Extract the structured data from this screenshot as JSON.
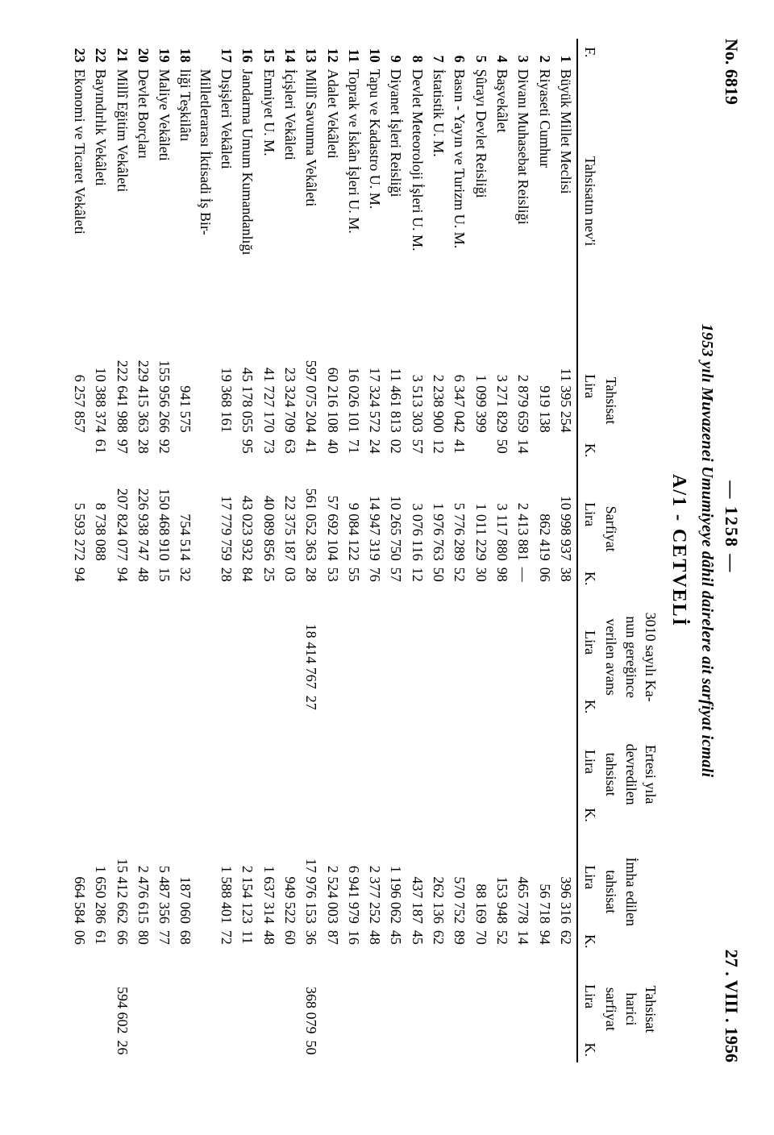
{
  "header": {
    "left": "No. 6819",
    "center": "— 1258 —",
    "right": "27 . VIII . 1956"
  },
  "subtitle": "1953 yılı Muvazenei Umumiyeye dâhil dairelere ait sarfiyat icmali",
  "section": "A/1 - CETVELİ",
  "columns": {
    "f": "F.",
    "name": "Tahsisatın nev'i",
    "tahsisat": "Tahsisat",
    "sarfiyat": "Sarfiyat",
    "avans": "3010 sayılı Ka-\nnun gereğince\nverilen avans",
    "devir": "Ertesi yıla\ndevredilen\ntahsisat",
    "imha": "İmha edilen\ntahsisat",
    "harici": "Tahsisat\nharici\nsarfiyat",
    "lira": "Lira",
    "k": "K."
  },
  "rows": [
    {
      "f": "1",
      "name": "Büyük Millet Meclisi",
      "tahsisat_l": "11 395 254",
      "tahsisat_k": "",
      "sarfiyat_l": "10 998 937",
      "sarfiyat_k": "38",
      "avans_l": "",
      "avans_k": "",
      "devir_l": "",
      "devir_k": "",
      "imha_l": "396 316",
      "imha_k": "62",
      "harici_l": "",
      "harici_k": ""
    },
    {
      "f": "2",
      "name": "Riyaseti Cumhur",
      "tahsisat_l": "919 138",
      "tahsisat_k": "",
      "sarfiyat_l": "862 419",
      "sarfiyat_k": "06",
      "avans_l": "",
      "avans_k": "",
      "devir_l": "",
      "devir_k": "",
      "imha_l": "56 718",
      "imha_k": "94",
      "harici_l": "",
      "harici_k": ""
    },
    {
      "f": "3",
      "name": "Divanı Muhasebat Reisliği",
      "tahsisat_l": "2 879 659",
      "tahsisat_k": "14",
      "sarfiyat_l": "2 413 881",
      "sarfiyat_k": "—",
      "avans_l": "",
      "avans_k": "",
      "devir_l": "",
      "devir_k": "",
      "imha_l": "465 778",
      "imha_k": "14",
      "harici_l": "",
      "harici_k": ""
    },
    {
      "f": "4",
      "name": "Başvekâlet",
      "tahsisat_l": "3 271 829",
      "tahsisat_k": "50",
      "sarfiyat_l": "3 117 880",
      "sarfiyat_k": "98",
      "avans_l": "",
      "avans_k": "",
      "devir_l": "",
      "devir_k": "",
      "imha_l": "153 948",
      "imha_k": "52",
      "harici_l": "",
      "harici_k": ""
    },
    {
      "f": "5",
      "name": "Şûrayı Devlet Reisliği",
      "tahsisat_l": "1 099 399",
      "tahsisat_k": "",
      "sarfiyat_l": "1 011 229",
      "sarfiyat_k": "30",
      "avans_l": "",
      "avans_k": "",
      "devir_l": "",
      "devir_k": "",
      "imha_l": "88 169",
      "imha_k": "70",
      "harici_l": "",
      "harici_k": ""
    },
    {
      "f": "6",
      "name": "Basın - Yayın ve Turizm U. M.",
      "tahsisat_l": "6 347 042",
      "tahsisat_k": "41",
      "sarfiyat_l": "5 776 289",
      "sarfiyat_k": "52",
      "avans_l": "",
      "avans_k": "",
      "devir_l": "",
      "devir_k": "",
      "imha_l": "570 752",
      "imha_k": "89",
      "harici_l": "",
      "harici_k": ""
    },
    {
      "f": "7",
      "name": "İstatistik U. M.",
      "tahsisat_l": "2 238 900",
      "tahsisat_k": "12",
      "sarfiyat_l": "1 976 763",
      "sarfiyat_k": "50",
      "avans_l": "",
      "avans_k": "",
      "devir_l": "",
      "devir_k": "",
      "imha_l": "262 136",
      "imha_k": "62",
      "harici_l": "",
      "harici_k": ""
    },
    {
      "f": "8",
      "name": "Devlet Meteoroloji İşleri U. M.",
      "tahsisat_l": "3 513 303",
      "tahsisat_k": "57",
      "sarfiyat_l": "3 076 116",
      "sarfiyat_k": "12",
      "avans_l": "",
      "avans_k": "",
      "devir_l": "",
      "devir_k": "",
      "imha_l": "437 187",
      "imha_k": "45",
      "harici_l": "",
      "harici_k": ""
    },
    {
      "f": "9",
      "name": "Diyanet İşleri Reisliği",
      "tahsisat_l": "11 461 813",
      "tahsisat_k": "02",
      "sarfiyat_l": "10 265 750",
      "sarfiyat_k": "57",
      "avans_l": "",
      "avans_k": "",
      "devir_l": "",
      "devir_k": "",
      "imha_l": "1 196 062",
      "imha_k": "45",
      "harici_l": "",
      "harici_k": ""
    },
    {
      "f": "10",
      "name": "Tapu ve Kadastro U. M.",
      "tahsisat_l": "17 324 572",
      "tahsisat_k": "24",
      "sarfiyat_l": "14 947 319",
      "sarfiyat_k": "76",
      "avans_l": "",
      "avans_k": "",
      "devir_l": "",
      "devir_k": "",
      "imha_l": "2 377 252",
      "imha_k": "48",
      "harici_l": "",
      "harici_k": ""
    },
    {
      "f": "11",
      "name": "Toprak ve İskân İşleri U. M.",
      "tahsisat_l": "16 026 101",
      "tahsisat_k": "71",
      "sarfiyat_l": "9 084 122",
      "sarfiyat_k": "55",
      "avans_l": "",
      "avans_k": "",
      "devir_l": "",
      "devir_k": "",
      "imha_l": "6 941 979",
      "imha_k": "16",
      "harici_l": "",
      "harici_k": ""
    },
    {
      "f": "12",
      "name": "Adalet Vekâleti",
      "tahsisat_l": "60 216 108",
      "tahsisat_k": "40",
      "sarfiyat_l": "57 692 104",
      "sarfiyat_k": "53",
      "avans_l": "",
      "avans_k": "",
      "devir_l": "",
      "devir_k": "",
      "imha_l": "2 524 003",
      "imha_k": "87",
      "harici_l": "",
      "harici_k": ""
    },
    {
      "f": "13",
      "name": "Millî Savunma Vekâleti",
      "tahsisat_l": "597 075 204",
      "tahsisat_k": "41",
      "sarfiyat_l": "561 052 363",
      "sarfiyat_k": "28",
      "avans_l": "18 414 767",
      "avans_k": "27",
      "devir_l": "",
      "devir_k": "",
      "imha_l": "17 976 153",
      "imha_k": "36",
      "harici_l": "368 079",
      "harici_k": "50"
    },
    {
      "f": "14",
      "name": "İçişleri Vekâleti",
      "tahsisat_l": "23 324 709",
      "tahsisat_k": "63",
      "sarfiyat_l": "22 375 187",
      "sarfiyat_k": "03",
      "avans_l": "",
      "avans_k": "",
      "devir_l": "",
      "devir_k": "",
      "imha_l": "949 522",
      "imha_k": "60",
      "harici_l": "",
      "harici_k": ""
    },
    {
      "f": "15",
      "name": "Emniyet U. M.",
      "tahsisat_l": "41 727 170",
      "tahsisat_k": "73",
      "sarfiyat_l": "40 089 856",
      "sarfiyat_k": "25",
      "avans_l": "",
      "avans_k": "",
      "devir_l": "",
      "devir_k": "",
      "imha_l": "1 637 314",
      "imha_k": "48",
      "harici_l": "",
      "harici_k": ""
    },
    {
      "f": "16",
      "name": "Jandarma Umum Kumandanlığı",
      "tahsisat_l": "45 178 055",
      "tahsisat_k": "95",
      "sarfiyat_l": "43 023 932",
      "sarfiyat_k": "84",
      "avans_l": "",
      "avans_k": "",
      "devir_l": "",
      "devir_k": "",
      "imha_l": "2 154 123",
      "imha_k": "11",
      "harici_l": "",
      "harici_k": ""
    },
    {
      "f": "17",
      "name": "Dışişleri Vekâleti",
      "tahsisat_l": "19 368 161",
      "tahsisat_k": "",
      "sarfiyat_l": "17 779 759",
      "sarfiyat_k": "28",
      "avans_l": "",
      "avans_k": "",
      "devir_l": "",
      "devir_k": "",
      "imha_l": "1 588 401",
      "imha_k": "72",
      "harici_l": "",
      "harici_k": ""
    },
    {
      "f": "18",
      "name": "Milletlerarası İktisadi İş Bir-\nliği Teşkilâtı",
      "tahsisat_l": "941 575",
      "tahsisat_k": "",
      "sarfiyat_l": "754 514",
      "sarfiyat_k": "32",
      "avans_l": "",
      "avans_k": "",
      "devir_l": "",
      "devir_k": "",
      "imha_l": "187 060",
      "imha_k": "68",
      "harici_l": "",
      "harici_k": ""
    },
    {
      "f": "19",
      "name": "Maliye Vekâleti",
      "tahsisat_l": "155 956 266",
      "tahsisat_k": "92",
      "sarfiyat_l": "150 468 910",
      "sarfiyat_k": "15",
      "avans_l": "",
      "avans_k": "",
      "devir_l": "",
      "devir_k": "",
      "imha_l": "5 487 356",
      "imha_k": "77",
      "harici_l": "",
      "harici_k": ""
    },
    {
      "f": "20",
      "name": "Devlet Borçları",
      "tahsisat_l": "229 415 363",
      "tahsisat_k": "28",
      "sarfiyat_l": "226 938 747",
      "sarfiyat_k": "48",
      "avans_l": "",
      "avans_k": "",
      "devir_l": "",
      "devir_k": "",
      "imha_l": "2 476 615",
      "imha_k": "80",
      "harici_l": "",
      "harici_k": ""
    },
    {
      "f": "21",
      "name": "Millî Eğitim Vekâleti",
      "tahsisat_l": "222 641 988",
      "tahsisat_k": "97",
      "sarfiyat_l": "207 824 077",
      "sarfiyat_k": "94",
      "avans_l": "",
      "avans_k": "",
      "devir_l": "",
      "devir_k": "",
      "imha_l": "15 412 662",
      "imha_k": "66",
      "harici_l": "594 602",
      "harici_k": "26"
    },
    {
      "f": "22",
      "name": "Bayındırlık Vekâleti",
      "tahsisat_l": "10 388 374",
      "tahsisat_k": "61",
      "sarfiyat_l": "8 738 088",
      "sarfiyat_k": "",
      "avans_l": "",
      "avans_k": "",
      "devir_l": "",
      "devir_k": "",
      "imha_l": "1 650 286",
      "imha_k": "61",
      "harici_l": "",
      "harici_k": ""
    },
    {
      "f": "23",
      "name": "Ekonomi ve Ticaret Vekâleti",
      "tahsisat_l": "6 257 857",
      "tahsisat_k": "",
      "sarfiyat_l": "5 593 272",
      "sarfiyat_k": "94",
      "avans_l": "",
      "avans_k": "",
      "devir_l": "",
      "devir_k": "",
      "imha_l": "664 584",
      "imha_k": "06",
      "harici_l": "",
      "harici_k": ""
    }
  ]
}
